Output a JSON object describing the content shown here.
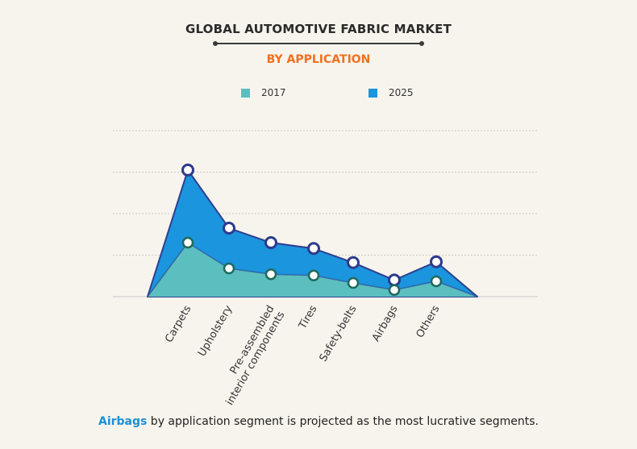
{
  "title": "GLOBAL AUTOMOTIVE FABRIC MARKET",
  "subtitle": "BY APPLICATION",
  "footer": {
    "highlight": "Airbags",
    "text": " by application segment is projected as the most lucrative segments."
  },
  "colors": {
    "series_2017_fill": "#5bbfbf",
    "series_2025_fill": "#1b95dd",
    "outline": "#2e3f8f",
    "marker_2017": "#1e6a5c",
    "marker_2025": "#2e3a8c",
    "grid": "#c9c9c9"
  },
  "chart_data": {
    "type": "area",
    "title": "GLOBAL AUTOMOTIVE FABRIC MARKET",
    "subtitle": "BY APPLICATION",
    "categories": [
      "Carpets",
      "Upholstery",
      "Pre-assembled interior components",
      "Tires",
      "Safety-belts",
      "Airbags",
      "Others"
    ],
    "tick_labels": [
      [
        "Carpets"
      ],
      [
        "Upholstery"
      ],
      [
        "Pre-assembled",
        "interior components"
      ],
      [
        "Tires"
      ],
      [
        "Safety-belts"
      ],
      [
        "Airbags"
      ],
      [
        "Others"
      ]
    ],
    "series": [
      {
        "name": "2017",
        "values": [
          1.3,
          0.68,
          0.54,
          0.51,
          0.33,
          0.16,
          0.37
        ]
      },
      {
        "name": "2025",
        "values": [
          3.05,
          1.65,
          1.3,
          1.16,
          0.82,
          0.4,
          0.84
        ]
      }
    ],
    "ylim": [
      0,
      4
    ],
    "grid": true,
    "legend": "top",
    "y_tick_labels_shown": false
  }
}
